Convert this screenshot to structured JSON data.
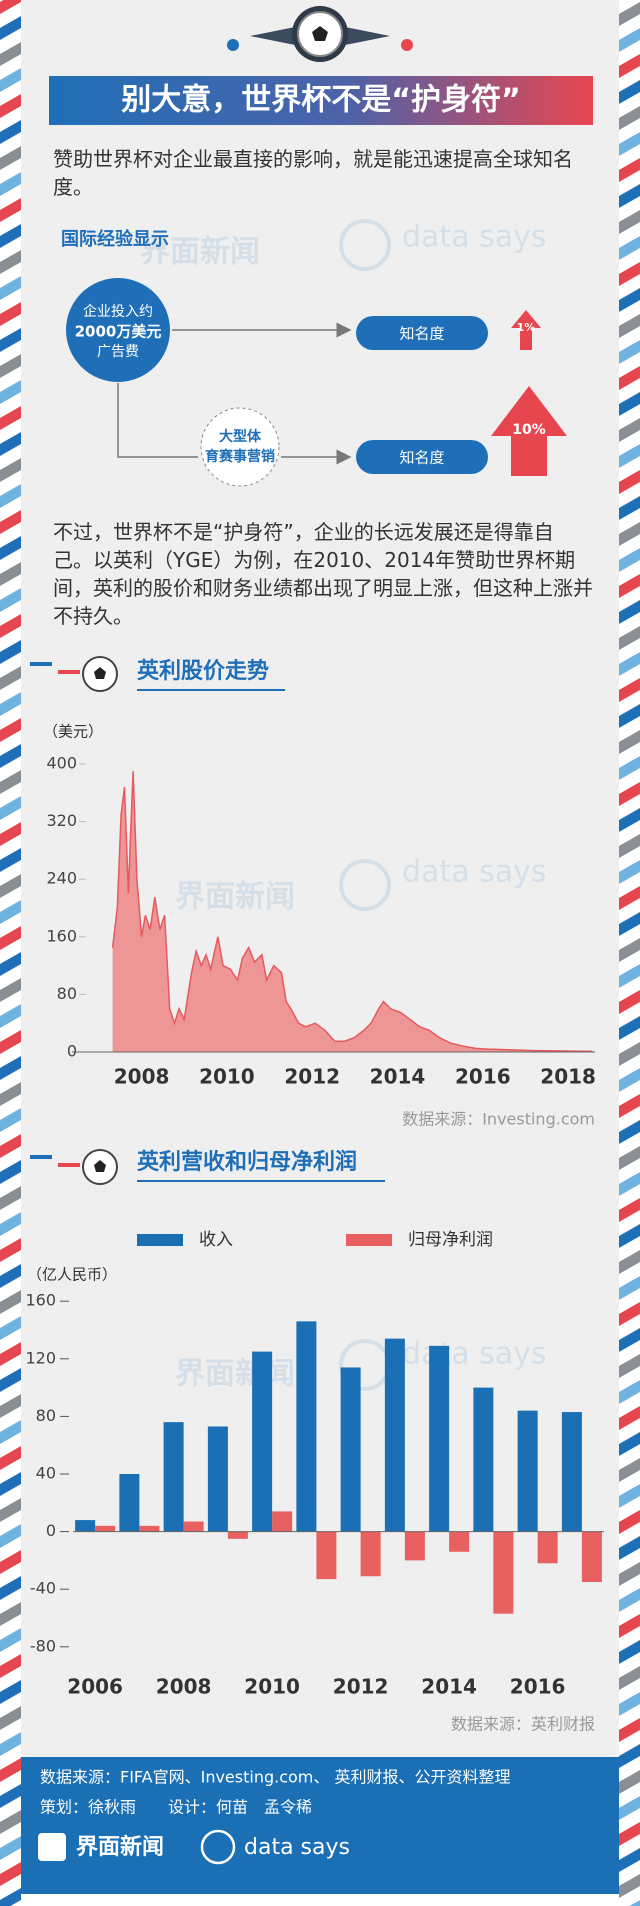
{
  "header": {
    "title": "别大意，世界杯不是“护身符”"
  },
  "intro": "赞助世界杯对企业最直接的影响，就是能迅速提高全球知名度。",
  "diagram": {
    "title": "国际经验显示",
    "investment": [
      "企业投入约",
      "2000万美元",
      "广告费"
    ],
    "event": [
      "大型体",
      "育赛事营销"
    ],
    "outcomes": [
      {
        "label": "知名度",
        "change": "1%"
      },
      {
        "label": "知名度",
        "change": "10%"
      }
    ]
  },
  "paragraph": "不过，世界杯不是“护身符”，企业的长远发展还是得靠自己。以英利（YGE）为例，在2010、2014年赞助世界杯期间，英利的股价和财务业绩都出现了明显上涨，但这种上涨并不持久。",
  "watermark": {
    "brand": "界面新闻",
    "tagline": "data says"
  },
  "chart_data": [
    {
      "type": "area",
      "title": "英利股价走势",
      "y_label": "（美元）",
      "x": [
        2007.32,
        2007.43,
        2007.52,
        2007.6,
        2007.69,
        2007.74,
        2007.8,
        2007.89,
        2008.0,
        2008.09,
        2008.2,
        2008.31,
        2008.43,
        2008.54,
        2008.66,
        2008.77,
        2008.88,
        2009.0,
        2009.17,
        2009.28,
        2009.4,
        2009.51,
        2009.62,
        2009.79,
        2009.91,
        2010.08,
        2010.25,
        2010.36,
        2010.51,
        2010.65,
        2010.82,
        2010.93,
        2011.1,
        2011.28,
        2011.39,
        2011.5,
        2011.68,
        2011.85,
        2012.07,
        2012.3,
        2012.53,
        2012.76,
        2012.99,
        2013.21,
        2013.38,
        2013.56,
        2013.67,
        2013.84,
        2014.07,
        2014.3,
        2014.52,
        2014.75,
        2014.98,
        2015.26,
        2015.55,
        2015.83,
        2016.12,
        2016.63,
        2017.2,
        2017.77,
        2018.34,
        2018.57
      ],
      "values": [
        145,
        200,
        330,
        368,
        220,
        300,
        390,
        240,
        160,
        190,
        170,
        215,
        170,
        190,
        60,
        40,
        60,
        45,
        110,
        140,
        120,
        135,
        115,
        160,
        120,
        115,
        100,
        130,
        145,
        125,
        135,
        100,
        120,
        110,
        70,
        60,
        40,
        35,
        40,
        30,
        15,
        15,
        20,
        30,
        40,
        60,
        70,
        60,
        55,
        45,
        35,
        30,
        20,
        12,
        8,
        5,
        4,
        3,
        2,
        1.5,
        1,
        1
      ],
      "color": "#ee9596",
      "line_color": "#e45a5e",
      "xlim": [
        2006.72,
        2018.63
      ],
      "ylim": [
        0,
        400
      ],
      "xticks": [
        2008,
        2010,
        2012,
        2014,
        2016,
        2018
      ],
      "yticks": [
        0,
        80,
        160,
        240,
        320,
        400
      ],
      "source": "数据来源：Investing.com"
    },
    {
      "type": "bar",
      "title": "英利营收和归母净利润",
      "y_label": "（亿人民币）",
      "categories": [
        "2006",
        null,
        "2008",
        null,
        "2010",
        null,
        "2012",
        null,
        "2014",
        null,
        "2016",
        null
      ],
      "series": [
        {
          "name": "收入",
          "color": "#1a6fb5",
          "values": [
            8,
            40,
            76,
            73,
            125,
            146,
            114,
            134,
            129,
            100,
            84,
            83
          ]
        },
        {
          "name": "归母净利润",
          "color": "#e8605f",
          "values": [
            4,
            4,
            7,
            -5,
            14,
            -33,
            -31,
            -20,
            -14,
            -57,
            -22,
            -35
          ]
        }
      ],
      "ylim": [
        -85,
        165
      ],
      "yticks": [
        -80,
        -40,
        0,
        40,
        80,
        120,
        160
      ],
      "source": "数据来源：英利财报"
    }
  ],
  "footer": {
    "sources": "数据来源：FIFA官网、Investing.com、 英利财报、公开资料整理",
    "credits": "策划：徐秋雨　　设计：何苗　孟令稀",
    "brand": "界面新闻",
    "tagline": "data says"
  }
}
